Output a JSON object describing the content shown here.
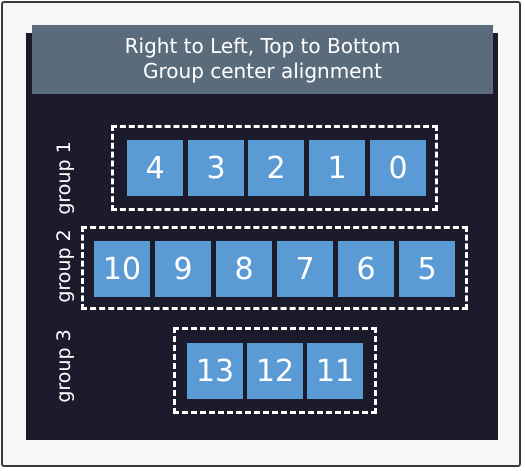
{
  "header": {
    "line1": "Right to Left, Top to Bottom",
    "line2": "Group center alignment"
  },
  "groups": [
    {
      "label": "group 1",
      "items": [
        "4",
        "3",
        "2",
        "1",
        "0"
      ]
    },
    {
      "label": "group 2",
      "items": [
        "10",
        "9",
        "8",
        "7",
        "6",
        "5"
      ]
    },
    {
      "label": "group 3",
      "items": [
        "13",
        "12",
        "11"
      ]
    }
  ],
  "colors": {
    "panel": "#1c1b2b",
    "header": "#5a6b7c",
    "tile": "#5b9bd5"
  }
}
